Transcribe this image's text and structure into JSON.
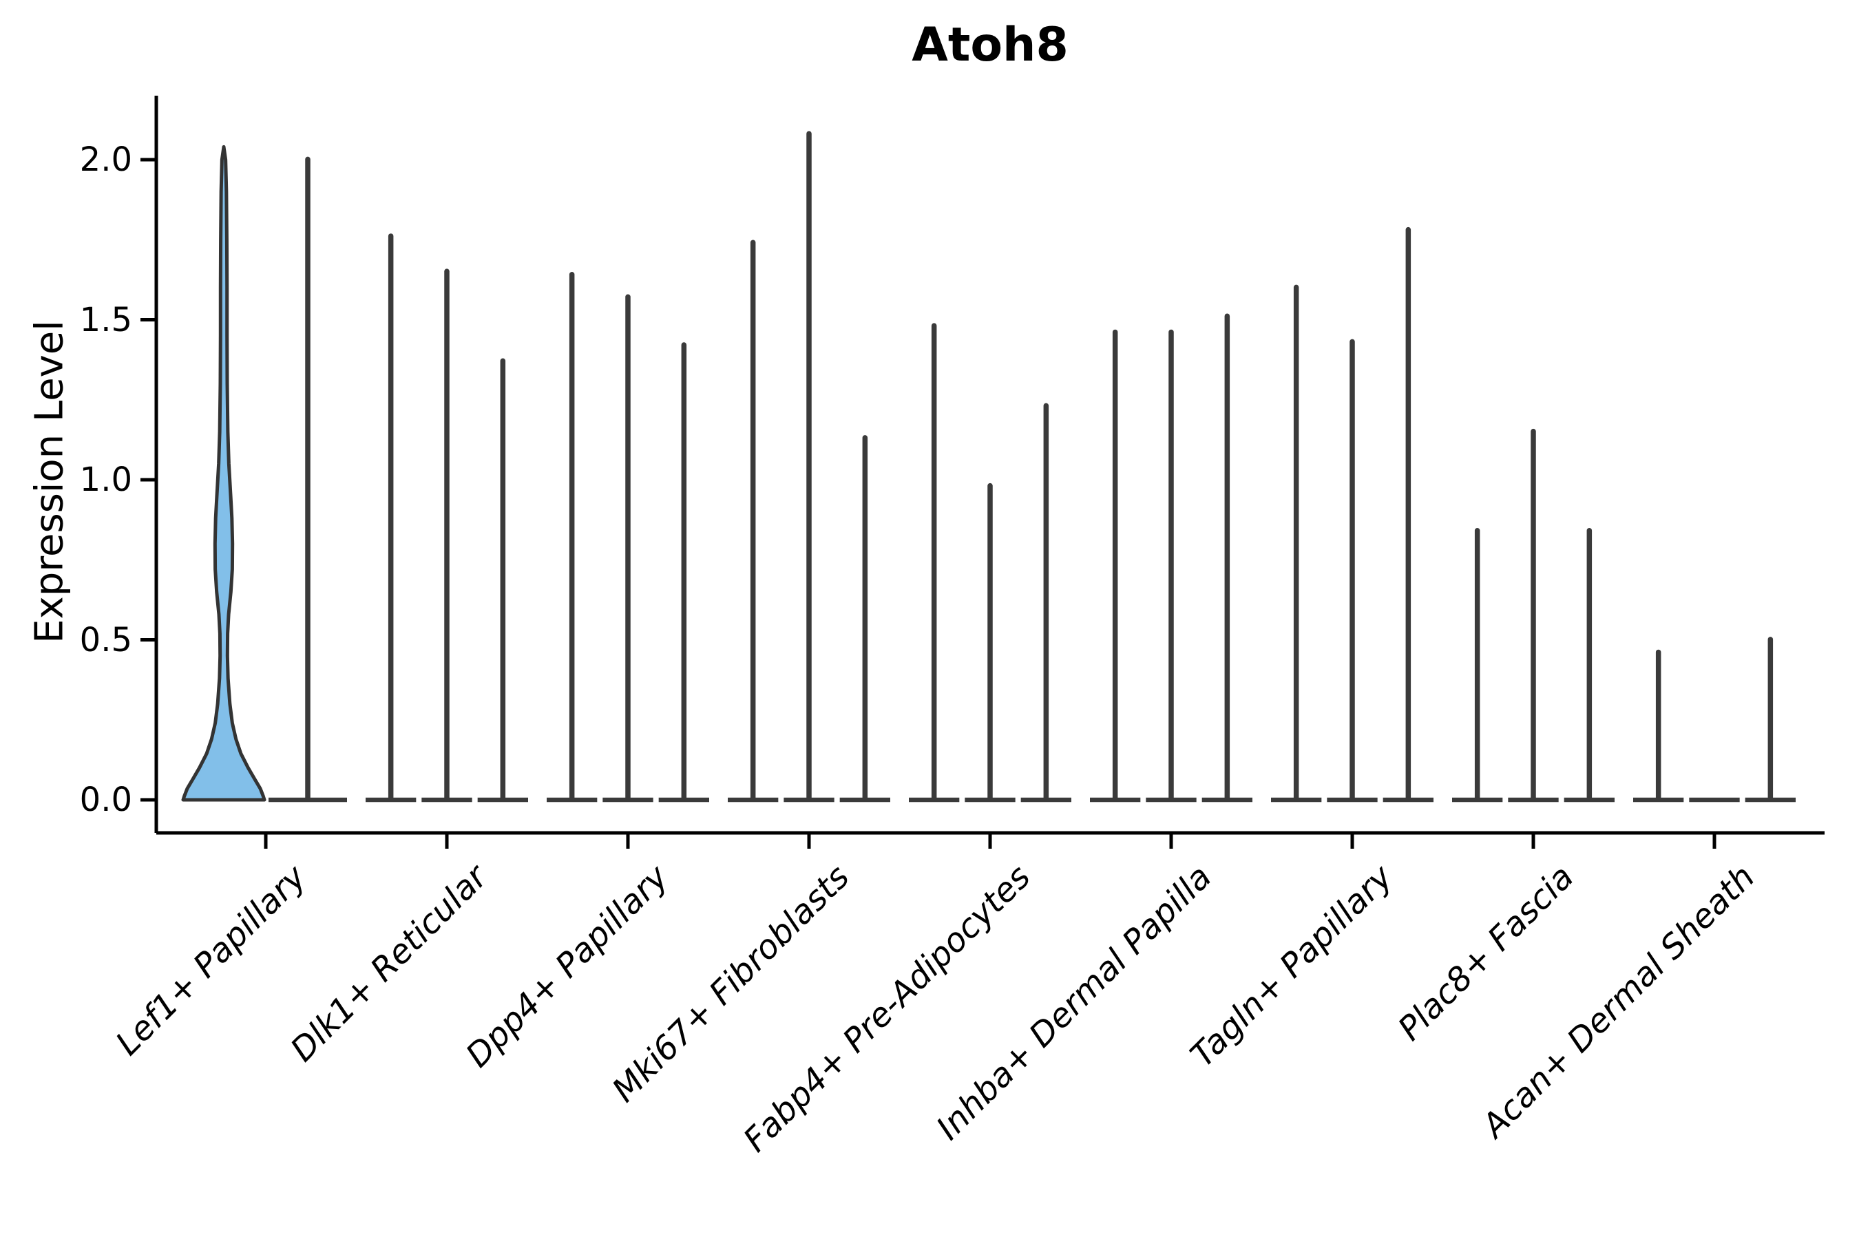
{
  "chart_data": {
    "type": "violin",
    "title": "Atoh8",
    "ylabel": "Expression Level",
    "xlabel": "",
    "ylim": [
      -0.1,
      2.2
    ],
    "grid": false,
    "legend_position": "none",
    "yticks": [
      {
        "label": "0.0",
        "value": 0.0
      },
      {
        "label": "0.5",
        "value": 0.5
      },
      {
        "label": "1.0",
        "value": 1.0
      },
      {
        "label": "1.5",
        "value": 1.5
      },
      {
        "label": "2.0",
        "value": 2.0
      }
    ],
    "colors": {
      "violin_fill": "#82BFE9",
      "violin_stroke": "#333333",
      "spike_stroke": "#3A3A3A",
      "axis_color": "#000000"
    },
    "groups": [
      {
        "label": "Lef1+ Papillary",
        "violins": [
          {
            "style": "density",
            "max": 2.04
          },
          {
            "style": "spike",
            "max": 2.01
          }
        ]
      },
      {
        "label": "Dlk1+ Reticular",
        "violins": [
          {
            "style": "spike",
            "max": 1.77
          },
          {
            "style": "spike",
            "max": 1.66
          },
          {
            "style": "spike",
            "max": 1.38
          }
        ]
      },
      {
        "label": "Dpp4+ Papillary",
        "violins": [
          {
            "style": "spike",
            "max": 1.65
          },
          {
            "style": "spike",
            "max": 1.58
          },
          {
            "style": "spike",
            "max": 1.43
          }
        ]
      },
      {
        "label": "Mki67+ Fibroblasts",
        "violins": [
          {
            "style": "spike",
            "max": 1.75
          },
          {
            "style": "spike",
            "max": 2.09
          },
          {
            "style": "spike",
            "max": 1.14
          }
        ]
      },
      {
        "label": "Fabp4+ Pre-Adipocytes",
        "violins": [
          {
            "style": "spike",
            "max": 1.49
          },
          {
            "style": "spike",
            "max": 0.99
          },
          {
            "style": "spike",
            "max": 1.24
          }
        ]
      },
      {
        "label": "Inhba+ Dermal Papilla",
        "violins": [
          {
            "style": "spike",
            "max": 1.47
          },
          {
            "style": "spike",
            "max": 1.47
          },
          {
            "style": "spike",
            "max": 1.52
          }
        ]
      },
      {
        "label": "Tagln+ Papillary",
        "violins": [
          {
            "style": "spike",
            "max": 1.61
          },
          {
            "style": "spike",
            "max": 1.44
          },
          {
            "style": "spike",
            "max": 1.79
          }
        ]
      },
      {
        "label": "Plac8+ Fascia",
        "violins": [
          {
            "style": "spike",
            "max": 0.85
          },
          {
            "style": "spike",
            "max": 1.16
          },
          {
            "style": "spike",
            "max": 0.85
          }
        ]
      },
      {
        "label": "Acan+ Dermal Sheath",
        "violins": [
          {
            "style": "spike",
            "max": 0.47
          },
          {
            "style": "flat",
            "max": 0.0
          },
          {
            "style": "spike",
            "max": 0.51
          }
        ]
      }
    ],
    "density_profile": [
      [
        2.04,
        0.0
      ],
      [
        2.0,
        0.045
      ],
      [
        1.9,
        0.065
      ],
      [
        1.75,
        0.075
      ],
      [
        1.6,
        0.08
      ],
      [
        1.45,
        0.08
      ],
      [
        1.3,
        0.085
      ],
      [
        1.15,
        0.1
      ],
      [
        1.05,
        0.125
      ],
      [
        0.95,
        0.17
      ],
      [
        0.88,
        0.2
      ],
      [
        0.8,
        0.215
      ],
      [
        0.72,
        0.21
      ],
      [
        0.65,
        0.175
      ],
      [
        0.58,
        0.12
      ],
      [
        0.52,
        0.095
      ],
      [
        0.45,
        0.09
      ],
      [
        0.38,
        0.105
      ],
      [
        0.3,
        0.15
      ],
      [
        0.24,
        0.21
      ],
      [
        0.19,
        0.3
      ],
      [
        0.145,
        0.42
      ],
      [
        0.1,
        0.6
      ],
      [
        0.065,
        0.76
      ],
      [
        0.035,
        0.9
      ],
      [
        0.012,
        0.97
      ],
      [
        0.0,
        1.0
      ]
    ]
  }
}
